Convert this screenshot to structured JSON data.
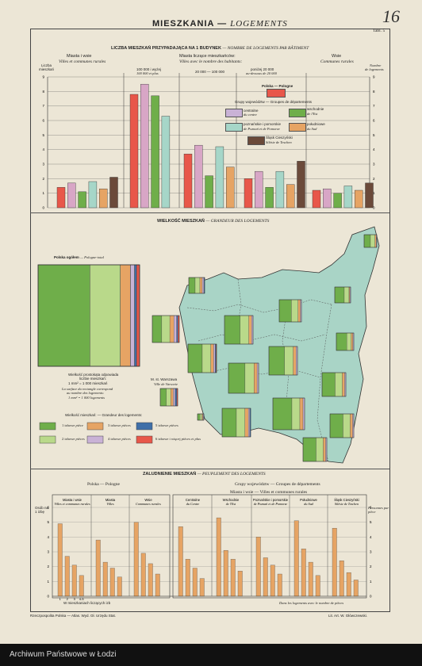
{
  "header": {
    "handwritten_number": "16",
    "title_pl": "MIESZKANIA",
    "title_dash": "—",
    "title_fr": "LOGEMENTS",
    "plate": "Tabl. 5"
  },
  "colors": {
    "red": "#e8574a",
    "pink": "#d8a6c6",
    "green": "#6fae4a",
    "lightgreen": "#b9d98a",
    "teal": "#a6d6c8",
    "orange": "#e6a464",
    "brown": "#6b4a3a",
    "blue": "#3f6fa8",
    "map": "#a9d4c6",
    "lilac": "#c9b2d6"
  },
  "section1": {
    "title_pl": "LICZBA MIESZKAŃ PRZYPADAJĄCA NA 1 BUDYNEK",
    "title_fr": "— NOMBRE DE LOGEMENTS PAR BÂTIMENT",
    "col1_pl": "Miasta i wsie",
    "col1_fr": "Villes et communes rurales",
    "col2_pl": "Miasta liczące mieszkańców:",
    "col2_fr": "Villes avec le nombre des habitants:",
    "col3_pl": "Wsie",
    "col3_fr": "Communes rurales",
    "yleft_pl": "Liczba",
    "yleft_pl2": "mieszkań",
    "yright_fr": "Nombre",
    "yright_fr2": "de logements",
    "sub1": "100 000 i wyżej",
    "sub1b": "100 000 et plus",
    "sub2": "20 000 — 100 000",
    "sub3": "poniżej 20 000",
    "sub3b": "au-dessous de 20 000",
    "legend_title": "Polska — Pologne",
    "legend_groups_title": "Grupy województw — Groupes de départements",
    "legend": [
      {
        "pl": "centralne",
        "fr": "du centre"
      },
      {
        "pl": "wschodnie",
        "fr": "de l'Est"
      },
      {
        "pl": "poznańskie i pomorskie",
        "fr": "de Poznań et de Pomorze"
      },
      {
        "pl": "południowe",
        "fr": "du Sud"
      },
      {
        "pl": "Śląsk Cieszyński",
        "fr": "Silésie de Teschen"
      }
    ]
  },
  "section2": {
    "title_pl": "WIELKOŚĆ MIESZKAŃ",
    "title_fr": "— GRANDEUR DES LOGEMENTS",
    "total_label_pl": "Polska ogółem",
    "total_label_fr": "— Pologne-total",
    "note1": "Wielkość prostokąta odpowiada",
    "note2": "liczbie mieszkań:",
    "note3": "1 mm² = 1 000 mieszkań",
    "note4": "La surface du rectangle correspond",
    "note5": "au nombre des logements:",
    "note6": "1 mm² = 1 000 logements",
    "warsaw_pl": "M. st. Warszawa",
    "warsaw_fr": "Ville de Varsovie",
    "size_title": "Wielkość mieszkań: — Grandeur des logements:",
    "size_legend": [
      {
        "pl": "1 izbowe",
        "fr": "pièce"
      },
      {
        "pl": "2 izbowe",
        "fr": "pièces"
      },
      {
        "pl": "3 izbowe",
        "fr": "pièces"
      },
      {
        "pl": "4 izbowe",
        "fr": "pièces"
      },
      {
        "pl": "5 izbowe",
        "fr": "pièces"
      },
      {
        "pl": "6 izbowe i więcej",
        "fr": "pièces et plus"
      }
    ]
  },
  "section3": {
    "title_pl": "ZALUDNIENIE MIESZKAŃ",
    "title_fr": "— PEUPLEMENT DES LOGEMENTS",
    "poland_label": "Polska — Pologne",
    "groups_label": "Grupy województw — Groupes de départements",
    "towns_label": "Miasta i wsie — Villes et communes rurales",
    "yleft": "Osób na 1 izbę",
    "yright": "Personnes par pièce",
    "xnote_pl": "W mieszkaniach liczących izb",
    "xnote_fr": "Dans les logements avec le nombre de pièces",
    "ticks": [
      "1",
      "2",
      "3",
      "4-5"
    ],
    "panel_titles": [
      {
        "pl": "Miasta i wsie",
        "fr": "Villes et communes rurales"
      },
      {
        "pl": "Miasta",
        "fr": "Villes"
      },
      {
        "pl": "Wsie",
        "fr": "Communes rurales"
      },
      {
        "pl": "Centralne",
        "fr": "du Centre"
      },
      {
        "pl": "Wschodnie",
        "fr": "de l'Est"
      },
      {
        "pl": "Poznańskie i pomorskie",
        "fr": "de Poznań et de Pomorze"
      },
      {
        "pl": "Południowe",
        "fr": "du Sud"
      },
      {
        "pl": "Śląsk Cieszyński",
        "fr": "Silésie de Teschen"
      }
    ]
  },
  "footer": {
    "left": "Rzeczpospolita Polska — Atlas. Wyd. Gł. Urzędu Stat.",
    "right": "Lit. Art. W. Główczewski.",
    "archive": "Archiwum Państwowe w Łodzi"
  },
  "chart_data": [
    {
      "type": "bar",
      "title": "LICZBA MIESZKAŃ PRZYPADAJĄCA NA 1 BUDYNEK — NOMBRE DE LOGEMENTS PAR BÂTIMENT",
      "ylim": [
        0,
        9
      ],
      "yticks": [
        "0",
        "1",
        "2",
        "3",
        "4",
        "5",
        "6",
        "7",
        "8",
        "9"
      ],
      "categories": [
        "Miasta i wsie",
        "100 000 i wyżej",
        "20 000 — 100 000",
        "poniżej 20 000",
        "Wsie"
      ],
      "series": [
        {
          "name": "Polska",
          "values": [
            1.4,
            7.8,
            3.7,
            2.0,
            1.2
          ]
        },
        {
          "name": "centralne",
          "values": [
            1.7,
            8.5,
            4.3,
            2.5,
            1.3
          ]
        },
        {
          "name": "wschodnie",
          "values": [
            1.1,
            7.7,
            2.2,
            1.4,
            1.0
          ]
        },
        {
          "name": "poznańskie i pomorskie",
          "values": [
            1.8,
            6.3,
            4.2,
            2.5,
            1.5
          ]
        },
        {
          "name": "południowe",
          "values": [
            1.3,
            0,
            2.8,
            1.6,
            1.2
          ]
        },
        {
          "name": "Śląsk Cieszyński",
          "values": [
            2.1,
            0,
            0,
            3.2,
            1.7
          ]
        }
      ]
    },
    {
      "type": "bar",
      "title": "WIELKOŚĆ MIESZKAŃ — GRANDEUR DES LOGEMENTS",
      "categories": [
        "1",
        "2",
        "3",
        "4",
        "5",
        "6+"
      ],
      "series": [
        {
          "name": "Polska ogółem",
          "values": [
            0.51,
            0.3,
            0.1,
            0.04,
            0.02,
            0.03
          ]
        }
      ]
    },
    {
      "type": "bar",
      "title": "ZALUDNIENIE MIESZKAŃ — PEUPLEMENT DES LOGEMENTS",
      "ylim": [
        0,
        6
      ],
      "yticks": [
        "0",
        "1",
        "2",
        "3",
        "4",
        "5",
        "6"
      ],
      "categories": [
        "1",
        "2",
        "3",
        "4-5"
      ],
      "series": [
        {
          "name": "Miasta i wsie",
          "values": [
            4.9,
            2.7,
            2.1,
            1.4
          ]
        },
        {
          "name": "Miasta",
          "values": [
            3.8,
            2.3,
            1.9,
            1.3
          ]
        },
        {
          "name": "Wsie",
          "values": [
            5.0,
            2.9,
            2.2,
            1.5
          ]
        },
        {
          "name": "Centralne",
          "values": [
            4.7,
            2.5,
            1.9,
            1.2
          ]
        },
        {
          "name": "Wschodnie",
          "values": [
            5.3,
            3.1,
            2.5,
            1.7
          ]
        },
        {
          "name": "Poznańskie i pomorskie",
          "values": [
            4.0,
            2.6,
            2.1,
            1.5
          ]
        },
        {
          "name": "Południowe",
          "values": [
            5.1,
            3.2,
            2.3,
            1.4
          ]
        },
        {
          "name": "Śląsk Cieszyński",
          "values": [
            4.6,
            2.4,
            1.6,
            1.1
          ]
        }
      ]
    }
  ]
}
